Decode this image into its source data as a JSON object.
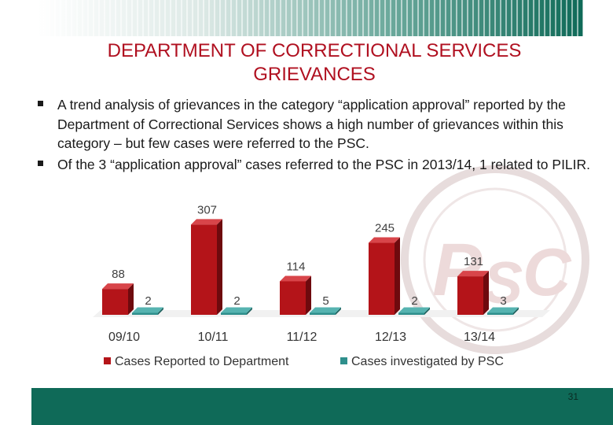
{
  "slide": {
    "title_line1": "DEPARTMENT OF CORRECTIONAL SERVICES",
    "title_line2": "GRIEVANCES",
    "bullets": [
      "A trend analysis of grievances in the category “application approval” reported by the Department of Correctional Services shows a high number of grievances within this category – but few cases were referred to the PSC.",
      "Of the 3 “application approval” cases referred to the PSC in 2013/14, 1 related to PILIR."
    ],
    "page_number": "31",
    "watermark_logo": "PSC"
  },
  "colors": {
    "title": "#b01020",
    "series_reported": "#b41419",
    "series_investigated": "#2f8f8c",
    "footer": "#0f6a58"
  },
  "chart_data": {
    "type": "bar",
    "categories": [
      "09/10",
      "10/11",
      "11/12",
      "12/13",
      "13/14"
    ],
    "series": [
      {
        "name": "Cases Reported to Department",
        "values": [
          88,
          307,
          114,
          245,
          131
        ]
      },
      {
        "name": "Cases investigated by PSC",
        "values": [
          2,
          2,
          5,
          2,
          3
        ]
      }
    ],
    "data_labels": true,
    "ylim": [
      0,
      320
    ],
    "grid": false,
    "legend_position": "bottom",
    "style": "3d-bar"
  }
}
